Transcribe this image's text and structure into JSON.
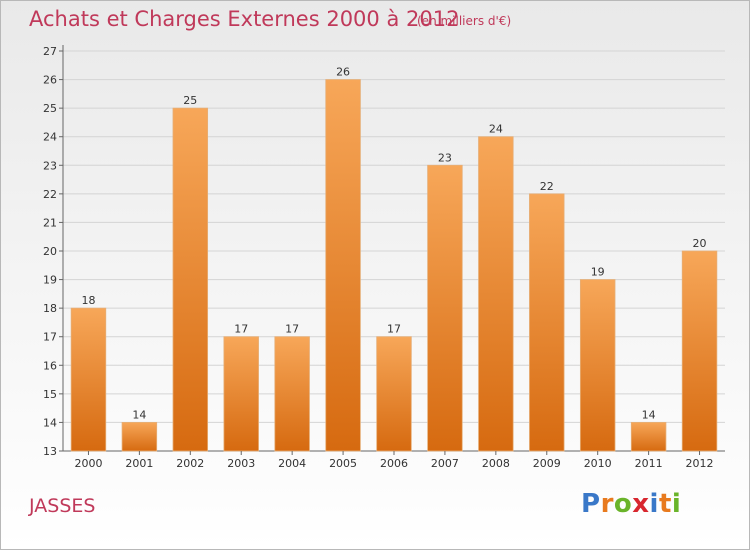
{
  "header": {
    "title": "Achats et Charges Externes 2000 à 2012",
    "subtitle": "(en milliers d'€)"
  },
  "footer": {
    "place": "JASSES",
    "logo_letters": [
      "P",
      "r",
      "o",
      "x",
      "i",
      "t",
      "i"
    ],
    "logo_colors": [
      "#3a78c8",
      "#e87a1e",
      "#6ab42a",
      "#d8262e",
      "#3a78c8",
      "#e87a1e",
      "#6ab42a"
    ]
  },
  "colors": {
    "bar_top": "#f7a759",
    "bar_bottom": "#d66a10",
    "text_accent": "#c0395a"
  },
  "chart_data": {
    "type": "bar",
    "categories": [
      "2000",
      "2001",
      "2002",
      "2003",
      "2004",
      "2005",
      "2006",
      "2007",
      "2008",
      "2009",
      "2010",
      "2011",
      "2012"
    ],
    "values": [
      18,
      14,
      25,
      17,
      17,
      26,
      17,
      23,
      24,
      22,
      19,
      14,
      20
    ],
    "ylim": [
      13,
      27
    ],
    "yticks": [
      13,
      14,
      15,
      16,
      17,
      18,
      19,
      20,
      21,
      22,
      23,
      24,
      25,
      26,
      27
    ],
    "grid": true
  }
}
